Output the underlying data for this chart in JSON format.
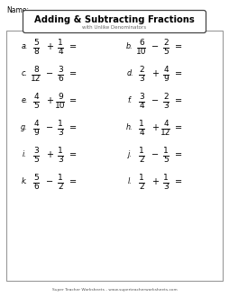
{
  "title": "Adding & Subtracting Fractions",
  "subtitle": "with Unlike Denominators",
  "name_label": "Name:",
  "footer": "Super Teacher Worksheets - www.superteacherworksheets.com",
  "background": "#ffffff",
  "problems": [
    {
      "label": "a.",
      "n1": "5",
      "d1": "8",
      "op": "+",
      "n2": "1",
      "d2": "4"
    },
    {
      "label": "b.",
      "n1": "6",
      "d1": "10",
      "op": "−",
      "n2": "2",
      "d2": "5"
    },
    {
      "label": "c.",
      "n1": "8",
      "d1": "12",
      "op": "−",
      "n2": "3",
      "d2": "6"
    },
    {
      "label": "d.",
      "n1": "2",
      "d1": "3",
      "op": "+",
      "n2": "4",
      "d2": "9"
    },
    {
      "label": "e.",
      "n1": "4",
      "d1": "5",
      "op": "+",
      "n2": "9",
      "d2": "10"
    },
    {
      "label": "f.",
      "n1": "3",
      "d1": "4",
      "op": "−",
      "n2": "2",
      "d2": "3"
    },
    {
      "label": "g.",
      "n1": "4",
      "d1": "9",
      "op": "−",
      "n2": "1",
      "d2": "3"
    },
    {
      "label": "h.",
      "n1": "1",
      "d1": "4",
      "op": "+",
      "n2": "4",
      "d2": "12"
    },
    {
      "label": "i.",
      "n1": "3",
      "d1": "5",
      "op": "+",
      "n2": "1",
      "d2": "3"
    },
    {
      "label": "j.",
      "n1": "1",
      "d1": "2",
      "op": "−",
      "n2": "1",
      "d2": "5"
    },
    {
      "label": "k.",
      "n1": "5",
      "d1": "6",
      "op": "−",
      "n2": "1",
      "d2": "2"
    },
    {
      "label": "l.",
      "n1": "1",
      "d1": "2",
      "op": "+",
      "n2": "1",
      "d2": "3"
    }
  ]
}
